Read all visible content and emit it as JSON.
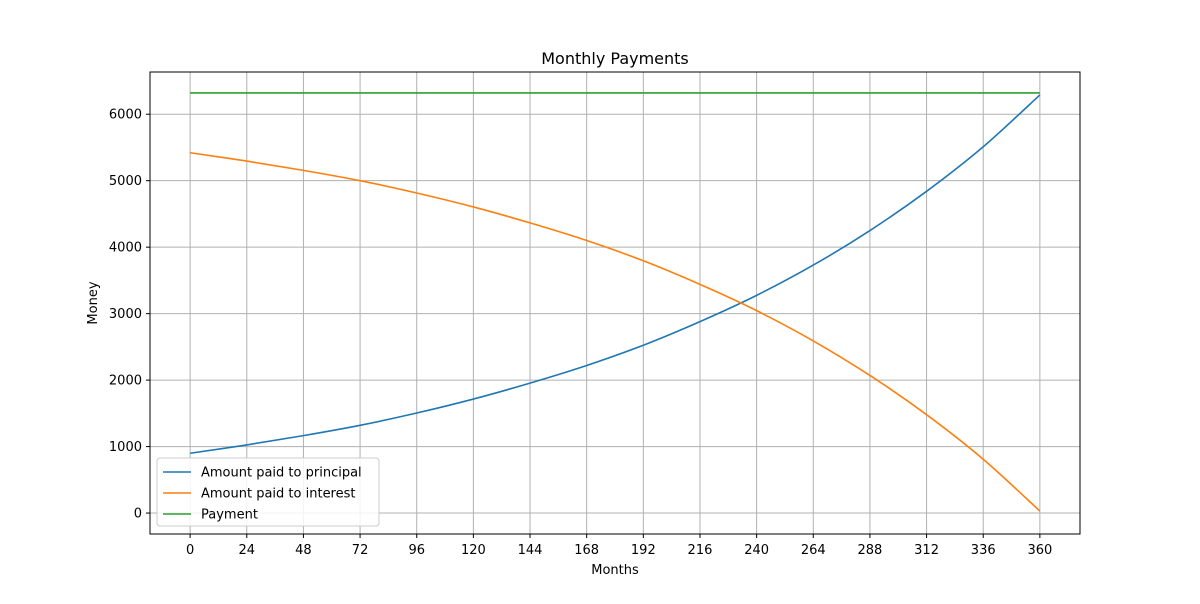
{
  "chart_data": {
    "type": "line",
    "title": "Monthly Payments",
    "xlabel": "Months",
    "ylabel": "Money",
    "xlim": [
      -17,
      377
    ],
    "ylim": [
      -315,
      6635
    ],
    "xticks": [
      0,
      24,
      48,
      72,
      96,
      120,
      144,
      168,
      192,
      216,
      240,
      264,
      288,
      312,
      336,
      360
    ],
    "yticks": [
      0,
      1000,
      2000,
      3000,
      4000,
      5000,
      6000
    ],
    "grid": true,
    "legend_position": "lower-left",
    "x": [
      0,
      24,
      48,
      72,
      96,
      120,
      144,
      168,
      192,
      216,
      240,
      264,
      288,
      312,
      336,
      360
    ],
    "series": [
      {
        "name": "Amount paid to principal",
        "color": "#1f77b4",
        "values": [
          900,
          1025,
          1165,
          1320,
          1505,
          1715,
          1955,
          2220,
          2525,
          2880,
          3275,
          3730,
          4250,
          4840,
          5510,
          6290
        ]
      },
      {
        "name": "Amount paid to interest",
        "color": "#ff7f0e",
        "values": [
          5420,
          5295,
          5155,
          5000,
          4815,
          4605,
          4365,
          4100,
          3795,
          3440,
          3045,
          2590,
          2070,
          1480,
          810,
          30
        ]
      },
      {
        "name": "Payment",
        "color": "#2ca02c",
        "values": [
          6320,
          6320,
          6320,
          6320,
          6320,
          6320,
          6320,
          6320,
          6320,
          6320,
          6320,
          6320,
          6320,
          6320,
          6320,
          6320
        ]
      }
    ]
  }
}
